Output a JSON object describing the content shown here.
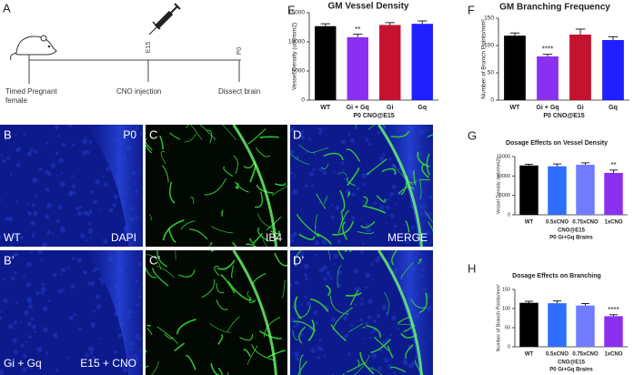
{
  "panel_labels": [
    "A",
    "B",
    "C",
    "D",
    "B’",
    "C’",
    "D’",
    "E",
    "F",
    "G",
    "H"
  ],
  "timeline": {
    "left_label": "Timed Pregnant female",
    "middle_label": "CNO injection",
    "right_label": "Dissect brain",
    "ticks": [
      "E15",
      "P0"
    ]
  },
  "image_text": {
    "b_top_right": "P0",
    "b_bottom_left": "WT",
    "b_bottom_right": "DAPI",
    "c_bottom_right": "IB4",
    "d_bottom_right": "MERGE",
    "b2_bottom_left": "Gi + Gq",
    "b2_bottom_right": "E15 + CNO"
  },
  "chart_data": [
    {
      "type": "bar",
      "title": "GM Vessel Density",
      "y_label": "Vessel Density (um/mm2)",
      "x_label": [
        "P0 CNO@E15"
      ],
      "categories": [
        "WT",
        "Gi + Gq",
        "Gi",
        "Gq"
      ],
      "values": [
        12700,
        10800,
        12900,
        13100
      ],
      "errors": [
        400,
        500,
        400,
        500
      ],
      "colors": [
        "#000000",
        "#8b2ff0",
        "#c4122f",
        "#1f1fff"
      ],
      "ylim": [
        0,
        15000
      ],
      "yticks": [
        0,
        5000,
        10000,
        15000
      ],
      "annotations": [
        {
          "text": "**",
          "category": "Gi + Gq"
        }
      ]
    },
    {
      "type": "bar",
      "title": "GM Branching Frequency",
      "y_label": "Number of Branch Points/mm²",
      "x_label": [
        "P0 CNO@E15"
      ],
      "categories": [
        "WT",
        "Gi + Gq",
        "Gi",
        "Gq"
      ],
      "values": [
        118,
        80,
        120,
        110
      ],
      "errors": [
        5,
        4,
        10,
        6
      ],
      "colors": [
        "#000000",
        "#8b2ff0",
        "#c4122f",
        "#1f1fff"
      ],
      "ylim": [
        0,
        150
      ],
      "yticks": [
        0,
        50,
        100,
        150
      ],
      "annotations": [
        {
          "text": "****",
          "category": "Gi + Gq"
        }
      ]
    },
    {
      "type": "bar",
      "title": "Dosage Effects on Vessel Density",
      "y_label": "Vessel Density (um/mm2)",
      "x_label": [
        "CNO@E15",
        "P0 Gi+Gq Brains"
      ],
      "categories": [
        "WT",
        "0.5xCNO",
        "0.75xCNO",
        "1xCNO"
      ],
      "values": [
        12700,
        12500,
        12900,
        10800
      ],
      "errors": [
        300,
        600,
        500,
        700
      ],
      "colors": [
        "#000000",
        "#2f6fff",
        "#6f7cff",
        "#8b2ff0"
      ],
      "ylim": [
        0,
        15000
      ],
      "yticks": [
        0,
        5000,
        10000,
        15000
      ],
      "annotations": [
        {
          "text": "**",
          "category": "1xCNO"
        }
      ]
    },
    {
      "type": "bar",
      "title": "Dosage Effects on Branching",
      "y_label": "Number of Branch Points/mm²",
      "x_label": [
        "CNO@E15",
        "P0 Gi+Gq Brains"
      ],
      "categories": [
        "WT",
        "0.5xCNO",
        "0.75xCNO",
        "1xCNO"
      ],
      "values": [
        115,
        114,
        108,
        80
      ],
      "errors": [
        4,
        6,
        5,
        4
      ],
      "colors": [
        "#000000",
        "#2f6fff",
        "#6f7cff",
        "#8b2ff0"
      ],
      "ylim": [
        0,
        150
      ],
      "yticks": [
        0,
        50,
        100,
        150
      ],
      "annotations": [
        {
          "text": "****",
          "category": "1xCNO"
        }
      ]
    }
  ]
}
